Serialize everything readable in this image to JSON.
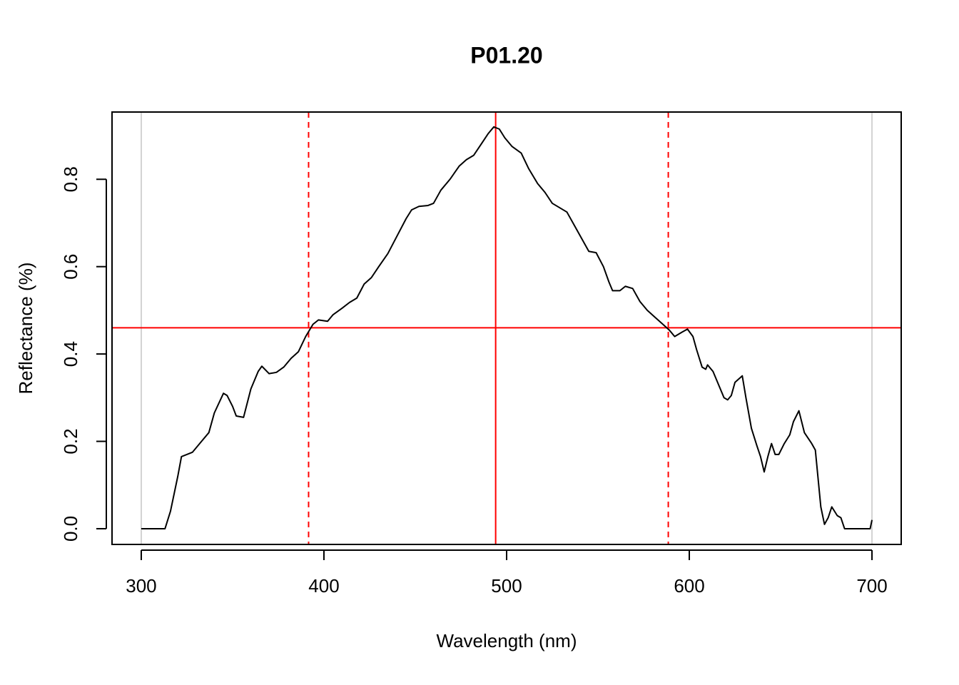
{
  "chart_data": {
    "type": "line",
    "title": "P01.20",
    "x_label": "Wavelength (nm)",
    "y_label": "Reflectance (%)",
    "x": [
      300,
      313,
      316,
      320,
      322,
      328,
      333,
      337,
      340,
      345,
      347,
      350,
      352,
      356,
      360,
      364,
      366,
      370,
      374,
      378,
      382,
      386,
      390,
      394,
      397,
      402,
      405,
      410,
      414,
      418,
      422,
      426,
      430,
      435,
      440,
      445,
      448,
      452,
      457,
      460,
      464,
      469,
      474,
      478,
      482,
      486,
      490,
      493,
      496,
      499,
      503,
      508,
      512,
      517,
      521,
      525,
      529,
      533,
      537,
      541,
      545,
      549,
      553,
      556,
      558,
      562,
      565,
      569,
      573,
      577,
      581,
      585,
      589,
      592,
      596,
      599,
      602,
      604,
      607,
      609,
      610,
      613,
      616,
      619,
      621,
      623,
      625,
      629,
      631,
      634,
      637,
      639,
      641,
      643,
      645,
      647,
      649,
      652,
      655,
      657,
      660,
      663,
      667,
      669,
      672,
      674,
      676,
      678,
      681,
      683,
      685,
      699,
      700
    ],
    "series": [
      {
        "color": "#000000",
        "values": [
          0,
          0,
          0.04,
          0.12,
          0.165,
          0.175,
          0.2,
          0.22,
          0.265,
          0.31,
          0.305,
          0.28,
          0.258,
          0.255,
          0.32,
          0.36,
          0.372,
          0.355,
          0.358,
          0.37,
          0.39,
          0.405,
          0.44,
          0.468,
          0.478,
          0.475,
          0.49,
          0.505,
          0.518,
          0.528,
          0.56,
          0.575,
          0.6,
          0.63,
          0.67,
          0.71,
          0.73,
          0.738,
          0.74,
          0.745,
          0.775,
          0.8,
          0.83,
          0.845,
          0.855,
          0.88,
          0.905,
          0.92,
          0.915,
          0.895,
          0.875,
          0.86,
          0.825,
          0.79,
          0.77,
          0.745,
          0.735,
          0.725,
          0.695,
          0.665,
          0.635,
          0.632,
          0.6,
          0.565,
          0.545,
          0.545,
          0.555,
          0.55,
          0.52,
          0.5,
          0.485,
          0.47,
          0.455,
          0.44,
          0.45,
          0.457,
          0.44,
          0.41,
          0.37,
          0.365,
          0.375,
          0.36,
          0.33,
          0.3,
          0.295,
          0.305,
          0.335,
          0.35,
          0.3,
          0.23,
          0.19,
          0.165,
          0.13,
          0.165,
          0.195,
          0.17,
          0.17,
          0.195,
          0.215,
          0.245,
          0.27,
          0.22,
          0.195,
          0.18,
          0.05,
          0.01,
          0.025,
          0.05,
          0.03,
          0.025,
          0,
          0,
          0.02
        ]
      }
    ],
    "xlim": [
      284,
      716
    ],
    "ylim": [
      -0.036,
      0.954
    ],
    "xticks": [
      300,
      400,
      500,
      600,
      700
    ],
    "yticks": [
      {
        "value": 0,
        "label": "0.0"
      },
      0.2,
      0.4,
      0.6,
      0.8
    ],
    "grey_vlines": {
      "color": "#d3d3d3",
      "x": [
        300,
        700
      ]
    },
    "peak_vline": {
      "color": "#ff0000",
      "x": 494
    },
    "half_max_hline": {
      "color": "#ff0000",
      "y": 0.46
    },
    "half_max_vlines": {
      "color": "#ff0000",
      "x": [
        391.6,
        588.5
      ]
    }
  }
}
